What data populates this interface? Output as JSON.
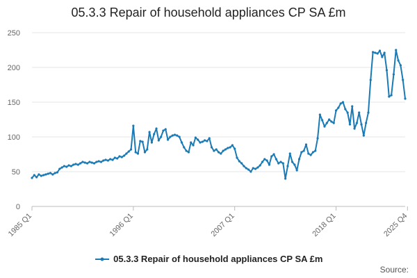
{
  "chart_data": {
    "type": "line",
    "title": "05.3.3 Repair of household appliances CP SA £m",
    "xlabel": "",
    "ylabel": "",
    "ylim": [
      0,
      250
    ],
    "yticks": [
      0,
      50,
      100,
      150,
      200,
      250
    ],
    "grid": true,
    "legend_position": "bottom",
    "xtick_labels": [
      "1985 Q1",
      "1996 Q1",
      "2007 Q1",
      "2018 Q1",
      "2025 Q4"
    ],
    "xtick_indices": [
      0,
      44,
      88,
      132,
      163
    ],
    "series": [
      {
        "name": "05.3.3 Repair of household appliances CP SA £m",
        "color": "#1a7ab5",
        "start": "1985 Q1",
        "end": "2025 Q4",
        "values": [
          41,
          45,
          42,
          46,
          44,
          45,
          46,
          47,
          48,
          46,
          48,
          49,
          54,
          56,
          58,
          57,
          59,
          58,
          60,
          61,
          60,
          62,
          64,
          63,
          62,
          64,
          63,
          62,
          64,
          65,
          64,
          66,
          67,
          66,
          68,
          67,
          70,
          69,
          72,
          71,
          73,
          76,
          79,
          82,
          116,
          78,
          76,
          94,
          93,
          78,
          82,
          107,
          92,
          104,
          112,
          95,
          100,
          109,
          111,
          96,
          100,
          102,
          103,
          102,
          100,
          92,
          85,
          80,
          78,
          92,
          88,
          99,
          96,
          92,
          93,
          95,
          94,
          98,
          85,
          80,
          82,
          78,
          76,
          80,
          82,
          84,
          85,
          88,
          83,
          70,
          65,
          62,
          58,
          55,
          53,
          50,
          55,
          54,
          56,
          59,
          64,
          68,
          66,
          60,
          72,
          75,
          68,
          62,
          64,
          62,
          40,
          58,
          76,
          64,
          60,
          52,
          68,
          78,
          80,
          89,
          76,
          74,
          78,
          80,
          98,
          132,
          124,
          115,
          120,
          125,
          122,
          120,
          138,
          142,
          148,
          150,
          140,
          135,
          118,
          144,
          112,
          120,
          135,
          118,
          102,
          120,
          135,
          182,
          222,
          221,
          220,
          224,
          215,
          221,
          196,
          158,
          160,
          190,
          225,
          210,
          203,
          182,
          155
        ]
      }
    ]
  },
  "legend": {
    "label": "05.3.3 Repair of household appliances CP SA £m"
  },
  "source": {
    "label": "Source:"
  }
}
